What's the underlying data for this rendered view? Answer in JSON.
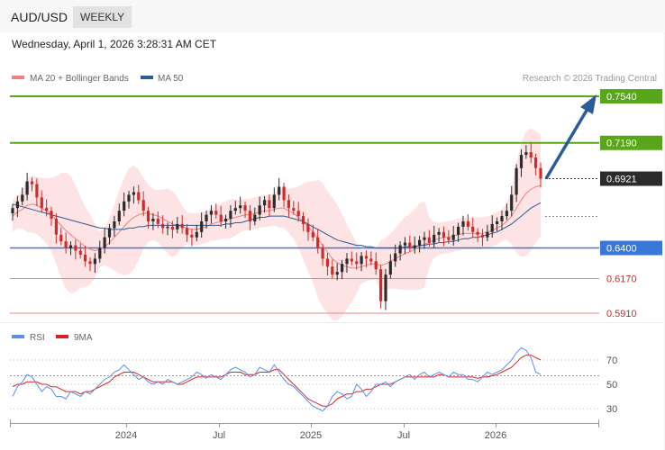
{
  "header": {
    "symbol": "AUD/USD",
    "timeframe": "WEEKLY",
    "datetime": "Wednesday, April 1, 2026 3:28:31 AM CET"
  },
  "legend": {
    "ma20_bb": "MA 20 + Bollinger Bands",
    "ma50": "MA 50",
    "credit": "Research © 2026 Trading Central",
    "rsi": "RSI",
    "rsi_ma": "9MA"
  },
  "colors": {
    "resistance": "#5aa61a",
    "support": "#3a78d8",
    "minor": "#f08080",
    "bb_fill": "#fde3e3",
    "ma20": "#f08080",
    "ma50": "#2c5b9a",
    "up": "#2b2b2b",
    "down": "#d02a2a",
    "arrow": "#2c5b9a",
    "rsi": "#5b8ee6",
    "rsi_ma": "#e02020"
  },
  "chart_data": {
    "type": "candlestick",
    "price_range": [
      0.58,
      0.772
    ],
    "x_ticks": [
      "2024",
      "Jul",
      "2025",
      "Jul",
      "2026"
    ],
    "levels": [
      {
        "value": "0.7540",
        "kind": "resistance"
      },
      {
        "value": "0.7190",
        "kind": "resistance"
      },
      {
        "value": "0.6921",
        "kind": "current"
      },
      {
        "value": "0.6400",
        "kind": "support"
      },
      {
        "value": "0.6170",
        "kind": "minor"
      },
      {
        "value": "0.5910",
        "kind": "minor"
      }
    ],
    "close_path": [
      0.67,
      0.675,
      0.68,
      0.69,
      0.688,
      0.678,
      0.67,
      0.668,
      0.662,
      0.65,
      0.645,
      0.64,
      0.642,
      0.638,
      0.635,
      0.63,
      0.628,
      0.632,
      0.64,
      0.648,
      0.655,
      0.66,
      0.668,
      0.675,
      0.68,
      0.682,
      0.676,
      0.668,
      0.66,
      0.662,
      0.658,
      0.655,
      0.656,
      0.654,
      0.658,
      0.655,
      0.65,
      0.648,
      0.652,
      0.66,
      0.665,
      0.668,
      0.665,
      0.66,
      0.662,
      0.668,
      0.67,
      0.672,
      0.668,
      0.66,
      0.665,
      0.672,
      0.676,
      0.67,
      0.68,
      0.686,
      0.676,
      0.67,
      0.668,
      0.664,
      0.658,
      0.652,
      0.648,
      0.64,
      0.632,
      0.626,
      0.62,
      0.622,
      0.628,
      0.632,
      0.63,
      0.628,
      0.634,
      0.632,
      0.63,
      0.624,
      0.6,
      0.62,
      0.63,
      0.636,
      0.642,
      0.644,
      0.64,
      0.642,
      0.646,
      0.648,
      0.644,
      0.65,
      0.652,
      0.648,
      0.646,
      0.65,
      0.656,
      0.66,
      0.656,
      0.652,
      0.65,
      0.648,
      0.652,
      0.658,
      0.66,
      0.664,
      0.668,
      0.68,
      0.7,
      0.71,
      0.712,
      0.708,
      0.7,
      0.692
    ],
    "ma20_path": [
      0.664,
      0.667,
      0.669,
      0.672,
      0.673,
      0.672,
      0.67,
      0.668,
      0.665,
      0.661,
      0.657,
      0.653,
      0.65,
      0.647,
      0.644,
      0.641,
      0.639,
      0.638,
      0.639,
      0.641,
      0.644,
      0.648,
      0.652,
      0.656,
      0.66,
      0.663,
      0.665,
      0.666,
      0.666,
      0.665,
      0.664,
      0.662,
      0.66,
      0.658,
      0.657,
      0.656,
      0.655,
      0.654,
      0.654,
      0.655,
      0.656,
      0.658,
      0.659,
      0.66,
      0.661,
      0.662,
      0.663,
      0.664,
      0.665,
      0.665,
      0.666,
      0.667,
      0.668,
      0.668,
      0.669,
      0.67,
      0.67,
      0.668,
      0.666,
      0.663,
      0.66,
      0.656,
      0.652,
      0.647,
      0.642,
      0.637,
      0.632,
      0.629,
      0.627,
      0.626,
      0.625,
      0.625,
      0.626,
      0.627,
      0.628,
      0.628,
      0.627,
      0.628,
      0.63,
      0.632,
      0.634,
      0.636,
      0.637,
      0.639,
      0.641,
      0.643,
      0.644,
      0.646,
      0.647,
      0.648,
      0.648,
      0.649,
      0.65,
      0.651,
      0.651,
      0.651,
      0.651,
      0.651,
      0.652,
      0.653,
      0.655,
      0.657,
      0.66,
      0.664,
      0.67,
      0.676,
      0.681,
      0.684,
      0.686,
      0.687
    ],
    "ma50_path": [
      0.673,
      0.672,
      0.671,
      0.67,
      0.669,
      0.668,
      0.667,
      0.666,
      0.665,
      0.664,
      0.663,
      0.662,
      0.661,
      0.66,
      0.659,
      0.658,
      0.657,
      0.656,
      0.655,
      0.655,
      0.654,
      0.654,
      0.654,
      0.654,
      0.655,
      0.655,
      0.656,
      0.656,
      0.657,
      0.657,
      0.657,
      0.657,
      0.657,
      0.657,
      0.657,
      0.657,
      0.657,
      0.657,
      0.657,
      0.657,
      0.657,
      0.657,
      0.657,
      0.657,
      0.658,
      0.658,
      0.659,
      0.659,
      0.66,
      0.661,
      0.662,
      0.663,
      0.663,
      0.664,
      0.664,
      0.664,
      0.664,
      0.663,
      0.662,
      0.661,
      0.66,
      0.658,
      0.656,
      0.654,
      0.652,
      0.65,
      0.648,
      0.646,
      0.645,
      0.644,
      0.643,
      0.642,
      0.642,
      0.641,
      0.641,
      0.64,
      0.64,
      0.64,
      0.64,
      0.64,
      0.64,
      0.641,
      0.641,
      0.641,
      0.642,
      0.642,
      0.643,
      0.643,
      0.644,
      0.644,
      0.645,
      0.645,
      0.646,
      0.647,
      0.647,
      0.648,
      0.648,
      0.649,
      0.65,
      0.651,
      0.652,
      0.654,
      0.656,
      0.658,
      0.661,
      0.664,
      0.667,
      0.67,
      0.672,
      0.674
    ],
    "rsi_range": [
      20,
      82
    ],
    "rsi_levels": [
      "70",
      "50",
      "30"
    ],
    "rsi_path": [
      40,
      48,
      52,
      58,
      56,
      50,
      44,
      48,
      46,
      40,
      40,
      38,
      44,
      42,
      40,
      44,
      42,
      46,
      50,
      54,
      56,
      60,
      62,
      66,
      62,
      58,
      54,
      56,
      52,
      50,
      52,
      50,
      54,
      52,
      50,
      52,
      54,
      56,
      60,
      58,
      55,
      58,
      56,
      54,
      58,
      62,
      64,
      62,
      60,
      56,
      58,
      64,
      62,
      60,
      66,
      60,
      54,
      50,
      48,
      44,
      40,
      36,
      32,
      30,
      28,
      32,
      40,
      44,
      42,
      38,
      40,
      50,
      46,
      40,
      44,
      50,
      50,
      52,
      48,
      52,
      54,
      56,
      58,
      54,
      58,
      60,
      56,
      58,
      60,
      58,
      56,
      60,
      58,
      58,
      54,
      54,
      52,
      56,
      60,
      58,
      60,
      62,
      66,
      70,
      76,
      80,
      78,
      72,
      60,
      58
    ],
    "rsi_ma_path": [
      48,
      50,
      50,
      52,
      52,
      52,
      50,
      50,
      48,
      48,
      46,
      44,
      44,
      44,
      42,
      44,
      44,
      46,
      48,
      50,
      52,
      56,
      58,
      60,
      60,
      60,
      58,
      56,
      54,
      52,
      52,
      52,
      52,
      52,
      50,
      50,
      52,
      54,
      56,
      56,
      56,
      56,
      56,
      56,
      58,
      60,
      60,
      60,
      58,
      58,
      58,
      60,
      60,
      60,
      62,
      62,
      58,
      54,
      50,
      46,
      42,
      38,
      36,
      34,
      32,
      32,
      34,
      38,
      40,
      42,
      42,
      44,
      44,
      46,
      46,
      48,
      50,
      50,
      50,
      52,
      54,
      56,
      56,
      56,
      56,
      56,
      56,
      56,
      58,
      58,
      56,
      56,
      56,
      56,
      56,
      56,
      55,
      56,
      56,
      57,
      58,
      60,
      62,
      64,
      68,
      72,
      74,
      74,
      72,
      70
    ]
  }
}
